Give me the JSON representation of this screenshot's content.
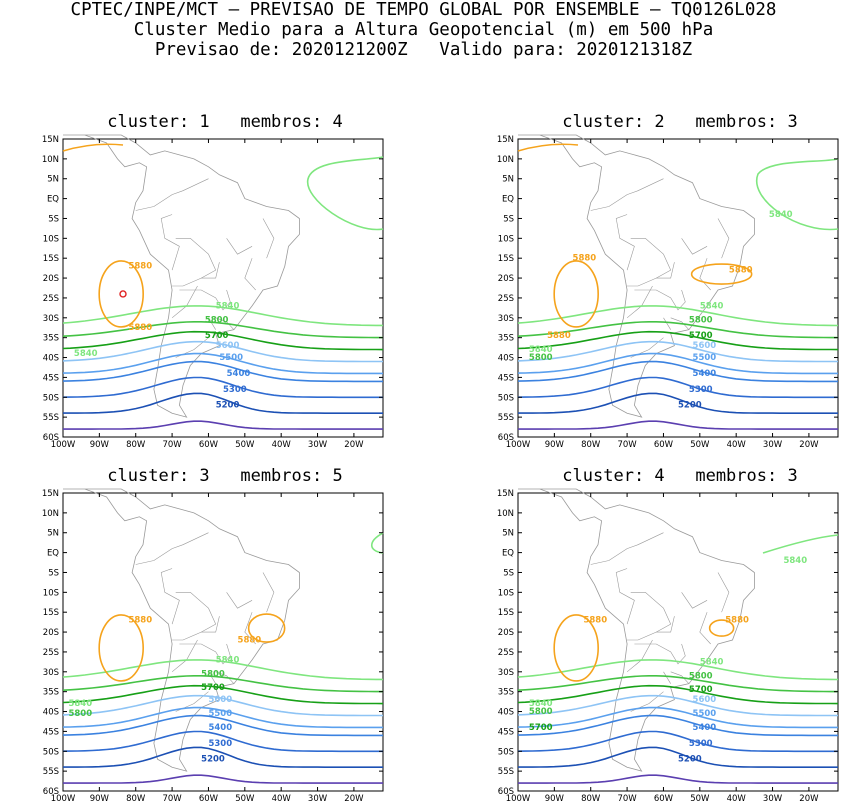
{
  "header": {
    "line1": "CPTEC/INPE/MCT – PREVISAO DE TEMPO GLOBAL POR ENSEMBLE – TQ0126L028",
    "line2": "Cluster Medio para a Altura Geopotencial (m) em 500 hPa",
    "line3": "Previsao de: 2020121200Z   Valido para: 2020121318Z"
  },
  "axes": {
    "lat_labels": [
      "15N",
      "10N",
      "5N",
      "EQ",
      "5S",
      "10S",
      "15S",
      "20S",
      "25S",
      "30S",
      "35S",
      "40S",
      "45S",
      "50S",
      "55S",
      "60S"
    ],
    "lon_labels": [
      "100W",
      "90W",
      "80W",
      "70W",
      "60W",
      "50W",
      "40W",
      "30W",
      "20W"
    ]
  },
  "colors": {
    "5200": "#1c50b4",
    "5300": "#2f6bd1",
    "5400": "#3b82e0",
    "5500": "#5aa0ee",
    "5600": "#8ec4f5",
    "5700": "#17a017",
    "5800": "#44c244",
    "5840": "#7fe67f",
    "5880": "#f5a31c",
    "5900": "#e02020",
    "low": "#5b3fb0",
    "land": "#9a9a9a"
  },
  "panels": [
    {
      "title": "cluster: 1   membros: 4",
      "labels": [
        {
          "text": "5880",
          "lon": -82,
          "lat": -17,
          "c": "5880"
        },
        {
          "text": "5880",
          "lon": -82,
          "lat": -32.5,
          "c": "5880"
        },
        {
          "text": "5840",
          "lon": -58,
          "lat": -27,
          "c": "5840"
        },
        {
          "text": "5840",
          "lon": -97,
          "lat": -39,
          "c": "5840"
        },
        {
          "text": "5800",
          "lon": -61,
          "lat": -30.5,
          "c": "5800"
        },
        {
          "text": "5700",
          "lon": -61,
          "lat": -34.5,
          "c": "5700"
        },
        {
          "text": "5600",
          "lon": -58,
          "lat": -37,
          "c": "5600"
        },
        {
          "text": "5500",
          "lon": -57,
          "lat": -40,
          "c": "5500"
        },
        {
          "text": "5400",
          "lon": -55,
          "lat": -44,
          "c": "5400"
        },
        {
          "text": "5300",
          "lon": -56,
          "lat": -48,
          "c": "5300"
        },
        {
          "text": "5200",
          "lon": -58,
          "lat": -52,
          "c": "5200"
        }
      ]
    },
    {
      "title": "cluster: 2   membros: 3",
      "labels": [
        {
          "text": "5880",
          "lon": -85,
          "lat": -15,
          "c": "5880"
        },
        {
          "text": "5880",
          "lon": -92,
          "lat": -34.5,
          "c": "5880"
        },
        {
          "text": "5880",
          "lon": -42,
          "lat": -18,
          "c": "5880"
        },
        {
          "text": "5840",
          "lon": -31,
          "lat": -4,
          "c": "5840"
        },
        {
          "text": "5840",
          "lon": -50,
          "lat": -27,
          "c": "5840"
        },
        {
          "text": "5840",
          "lon": -97,
          "lat": -38,
          "c": "5840"
        },
        {
          "text": "5800",
          "lon": -97,
          "lat": -40,
          "c": "5800"
        },
        {
          "text": "5800",
          "lon": -53,
          "lat": -30.5,
          "c": "5800"
        },
        {
          "text": "5700",
          "lon": -53,
          "lat": -34.5,
          "c": "5700"
        },
        {
          "text": "5600",
          "lon": -52,
          "lat": -37,
          "c": "5600"
        },
        {
          "text": "5500",
          "lon": -52,
          "lat": -40,
          "c": "5500"
        },
        {
          "text": "5400",
          "lon": -52,
          "lat": -44,
          "c": "5400"
        },
        {
          "text": "5300",
          "lon": -53,
          "lat": -48,
          "c": "5300"
        },
        {
          "text": "5200",
          "lon": -56,
          "lat": -52,
          "c": "5200"
        }
      ]
    },
    {
      "title": "cluster: 3   membros: 5",
      "labels": [
        {
          "text": "5880",
          "lon": -82,
          "lat": -17,
          "c": "5880"
        },
        {
          "text": "5880",
          "lon": -52,
          "lat": -22,
          "c": "5880"
        },
        {
          "text": "5840",
          "lon": -58,
          "lat": -27,
          "c": "5840"
        },
        {
          "text": "5840",
          "lon": -98.5,
          "lat": -38,
          "c": "5840"
        },
        {
          "text": "5800",
          "lon": -98.5,
          "lat": -40.5,
          "c": "5800"
        },
        {
          "text": "5800",
          "lon": -62,
          "lat": -30.5,
          "c": "5800"
        },
        {
          "text": "5700",
          "lon": -62,
          "lat": -34,
          "c": "5700"
        },
        {
          "text": "5600",
          "lon": -60,
          "lat": -37,
          "c": "5600"
        },
        {
          "text": "5500",
          "lon": -60,
          "lat": -40.5,
          "c": "5500"
        },
        {
          "text": "5400",
          "lon": -60,
          "lat": -44,
          "c": "5400"
        },
        {
          "text": "5300",
          "lon": -60,
          "lat": -48,
          "c": "5300"
        },
        {
          "text": "5200",
          "lon": -62,
          "lat": -52,
          "c": "5200"
        }
      ]
    },
    {
      "title": "cluster: 4   membros: 3",
      "labels": [
        {
          "text": "5880",
          "lon": -82,
          "lat": -17,
          "c": "5880"
        },
        {
          "text": "5880",
          "lon": -43,
          "lat": -17,
          "c": "5880"
        },
        {
          "text": "5840",
          "lon": -27,
          "lat": -2,
          "c": "5840"
        },
        {
          "text": "5840",
          "lon": -50,
          "lat": -27.5,
          "c": "5840"
        },
        {
          "text": "5840",
          "lon": -97,
          "lat": -38,
          "c": "5840"
        },
        {
          "text": "5800",
          "lon": -97,
          "lat": -40,
          "c": "5800"
        },
        {
          "text": "5700",
          "lon": -97,
          "lat": -44,
          "c": "5700"
        },
        {
          "text": "5800",
          "lon": -53,
          "lat": -31,
          "c": "5800"
        },
        {
          "text": "5700",
          "lon": -53,
          "lat": -34.5,
          "c": "5700"
        },
        {
          "text": "5600",
          "lon": -52,
          "lat": -37,
          "c": "5600"
        },
        {
          "text": "5500",
          "lon": -52,
          "lat": -40.5,
          "c": "5500"
        },
        {
          "text": "5400",
          "lon": -52,
          "lat": -44,
          "c": "5400"
        },
        {
          "text": "5300",
          "lon": -53,
          "lat": -48,
          "c": "5300"
        },
        {
          "text": "5200",
          "lon": -56,
          "lat": -52,
          "c": "5200"
        }
      ]
    }
  ]
}
